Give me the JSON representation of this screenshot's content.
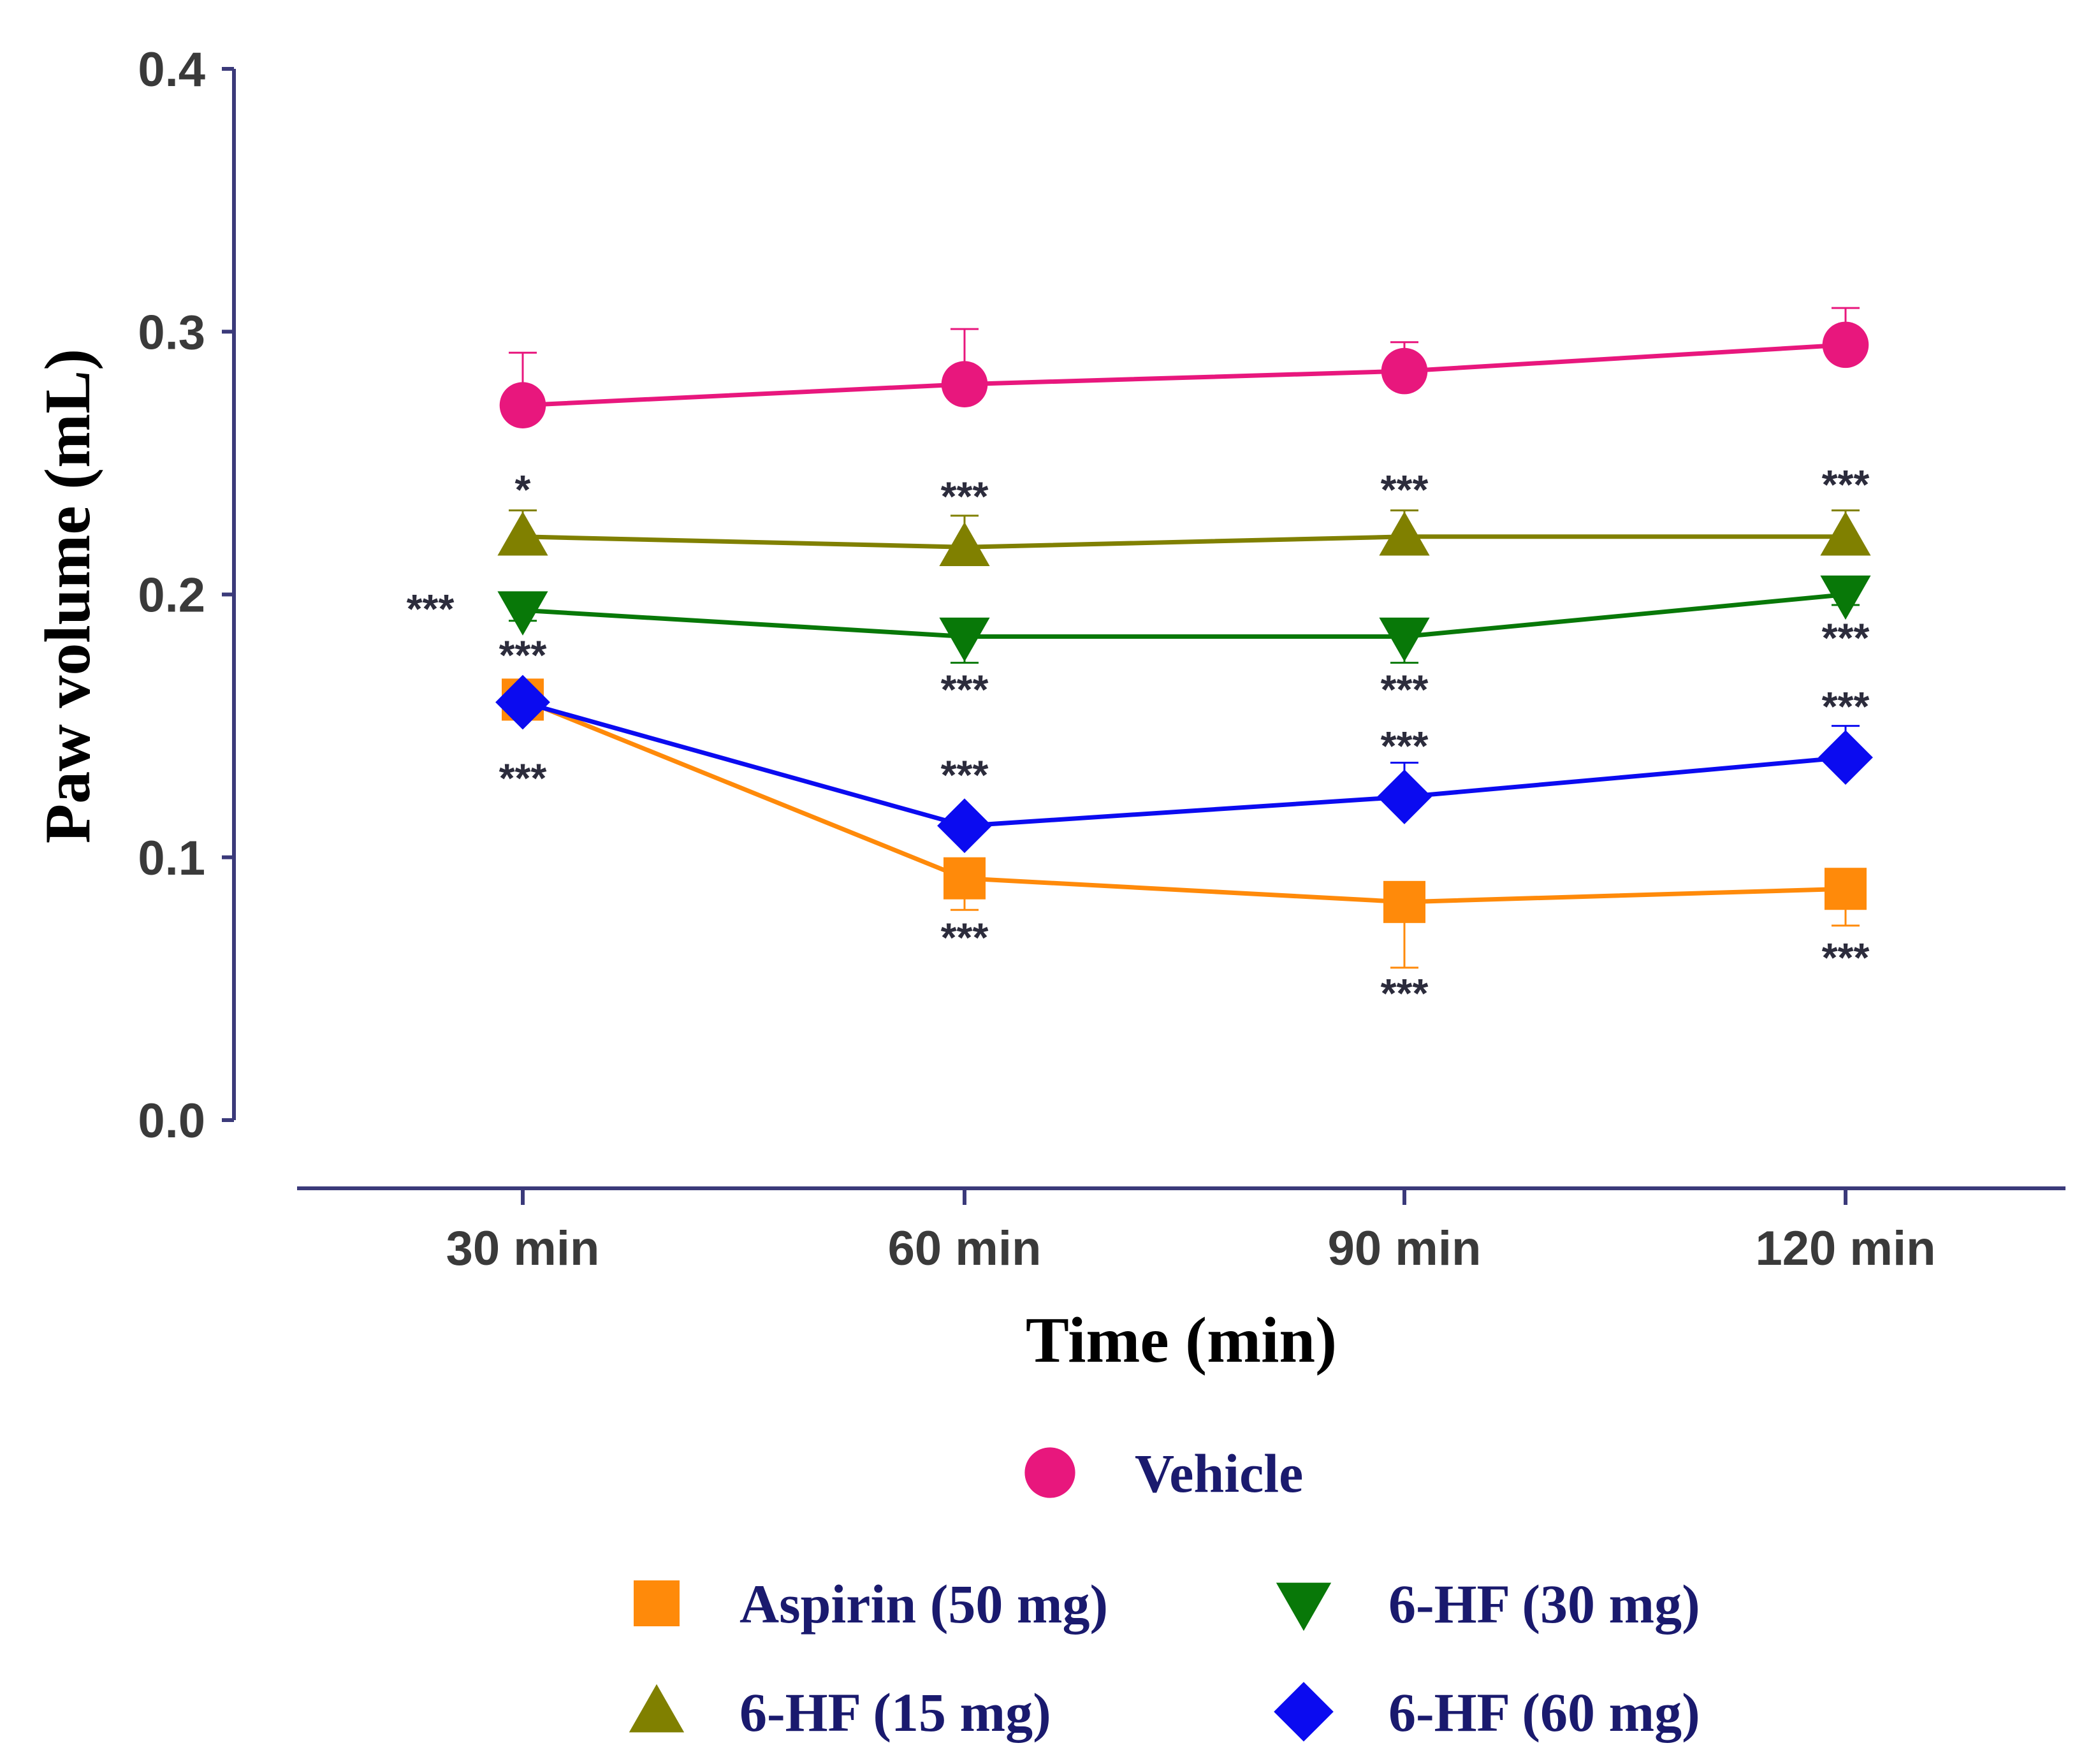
{
  "chart_data": {
    "type": "line",
    "title": "",
    "xlabel": "Time (min)",
    "ylabel": "Paw volume (mL)",
    "categories": [
      "30 min",
      "60 min",
      "90 min",
      "120 min"
    ],
    "ylim": [
      0,
      0.4
    ],
    "yticks": [
      "0.0",
      "0.1",
      "0.2",
      "0.3",
      "0.4"
    ],
    "ytick_values": [
      0,
      0.1,
      0.2,
      0.3,
      0.4
    ],
    "grid": false,
    "legend_position": "bottom",
    "series": [
      {
        "name": "Vehicle",
        "color": "#e8177d",
        "marker": "circle",
        "values": [
          0.272,
          0.28,
          0.285,
          0.295
        ],
        "error": [
          0.02,
          0.021,
          0.011,
          0.014
        ],
        "significance": [
          "",
          "",
          "",
          ""
        ]
      },
      {
        "name": "6-HF (15 mg)",
        "color": "#808000",
        "marker": "triangle-up",
        "values": [
          0.222,
          0.218,
          0.222,
          0.222
        ],
        "error": [
          0.01,
          0.012,
          0.01,
          0.01
        ],
        "significance": [
          "*",
          "***",
          "***",
          "***"
        ]
      },
      {
        "name": "6-HF (30 mg)",
        "color": "#087808",
        "marker": "triangle-down",
        "values": [
          0.194,
          0.184,
          0.184,
          0.2
        ],
        "error": [
          0.004,
          0.01,
          0.01,
          0.004
        ],
        "significance": [
          "***",
          "***",
          "***",
          "***"
        ]
      },
      {
        "name": "6-HF (60 mg)",
        "color": "#0b0bf0",
        "marker": "diamond",
        "values": [
          0.159,
          0.112,
          0.123,
          0.138
        ],
        "error": [
          0.004,
          0.004,
          0.013,
          0.012
        ],
        "significance": [
          "***",
          "***",
          "***",
          "***"
        ]
      },
      {
        "name": "Aspirin (50 mg)",
        "color": "#ff8a0a",
        "marker": "square",
        "values": [
          0.16,
          0.092,
          0.083,
          0.088
        ],
        "error": [
          0.004,
          0.012,
          0.025,
          0.014
        ],
        "significance": [
          "***",
          "***",
          "***",
          "***"
        ]
      }
    ],
    "legend": [
      {
        "label": "Vehicle",
        "marker": "circle",
        "color": "#e8177d"
      },
      {
        "label": "Aspirin (50 mg)",
        "marker": "square",
        "color": "#ff8a0a"
      },
      {
        "label": "6-HF (30 mg)",
        "marker": "triangle-down",
        "color": "#087808"
      },
      {
        "label": "6-HF (15 mg)",
        "marker": "triangle-up",
        "color": "#808000"
      },
      {
        "label": "6-HF (60 mg)",
        "marker": "diamond",
        "color": "#0b0bf0"
      }
    ]
  }
}
